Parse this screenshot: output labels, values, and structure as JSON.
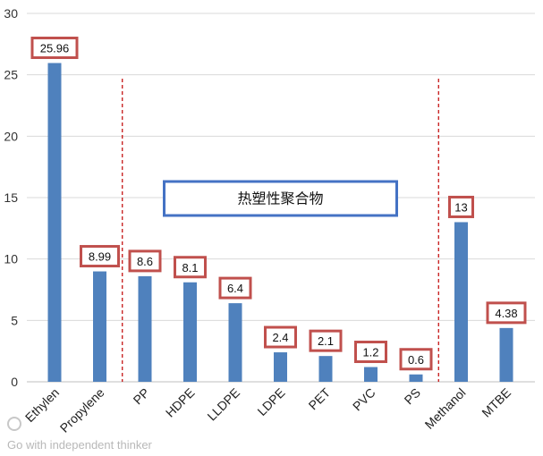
{
  "chart_data": {
    "type": "bar",
    "categories": [
      "Ethylen",
      "Propylene",
      "PP",
      "HDPE",
      "LLDPE",
      "LDPE",
      "PET",
      "PVC",
      "PS",
      "Methanol",
      "MTBE"
    ],
    "values": [
      25.96,
      8.99,
      8.6,
      8.1,
      6.4,
      2.4,
      2.1,
      1.2,
      0.6,
      13,
      4.38
    ],
    "data_labels": [
      "25.96",
      "8.99",
      "8.6",
      "8.1",
      "6.4",
      "2.4",
      "2.1",
      "1.2",
      "0.6",
      "13",
      "4.38"
    ],
    "ylim": [
      0,
      30
    ],
    "yticks": [
      0,
      5,
      10,
      15,
      20,
      25,
      30
    ],
    "ytick_labels": [
      "0",
      "5",
      "10",
      "15",
      "20",
      "25",
      "30"
    ],
    "grid": true,
    "title": "",
    "xlabel": "",
    "ylabel": "",
    "annotation": {
      "text": "热塑性聚合物",
      "range_start": "PP",
      "range_end": "PS"
    },
    "watermark": "Go with independent thinker"
  },
  "colors": {
    "bar": "#4f81bd",
    "label_border": "#c0504d",
    "separator": "#c00000",
    "annotation_border": "#4472c4",
    "grid": "#d9d9d9"
  }
}
